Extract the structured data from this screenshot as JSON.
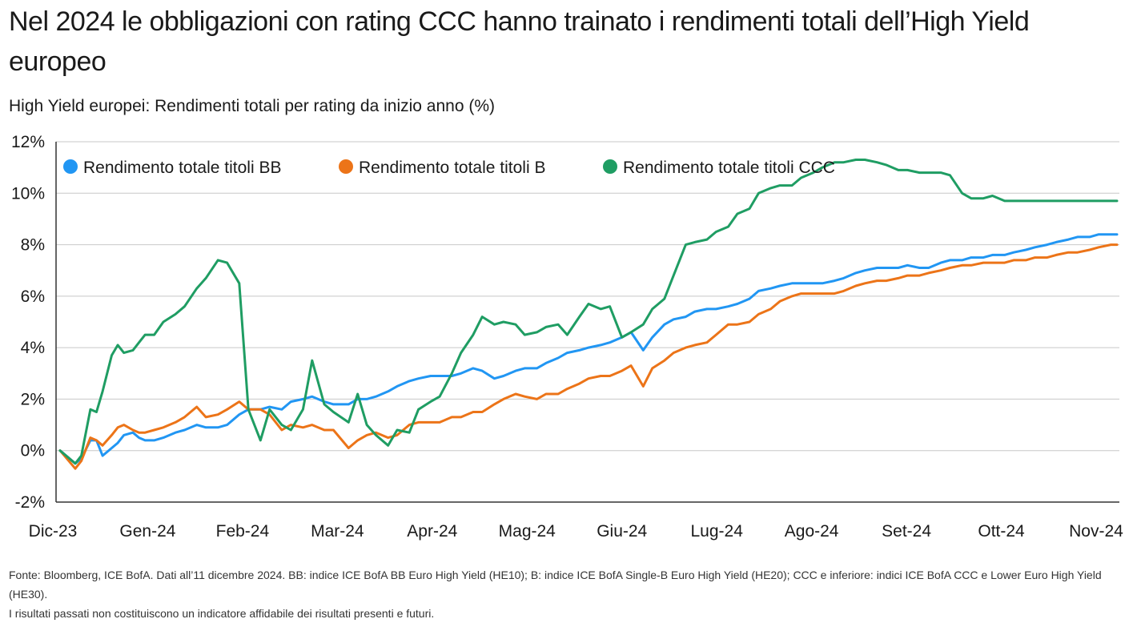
{
  "title": "Nel 2024 le obbligazioni con rating CCC hanno trainato i rendimenti totali dell’High Yield europeo",
  "subtitle": "High Yield europei: Rendimenti totali per rating da inizio anno (%)",
  "footnotes": [
    "Fonte: Bloomberg, ICE BofA. Dati all’11 dicembre 2024. BB: indice ICE BofA BB Euro High Yield (HE10); B: indice ICE BofA Single-B Euro High Yield (HE20); CCC e inferiore: indici ICE BofA CCC e Lower Euro High Yield (HE30).",
    "I risultati passati non costituiscono un indicatore affidabile dei risultati presenti e futuri."
  ],
  "colors": {
    "BB": "#2196f3",
    "B": "#ec7418",
    "CCC": "#1f9d63",
    "grid": "#c8c8c8",
    "axis": "#333333"
  },
  "chart_data": {
    "type": "line",
    "x_tick_labels": [
      "Dic-23",
      "Gen-24",
      "Feb-24",
      "Mar-24",
      "Apr-24",
      "Mag-24",
      "Giu-24",
      "Lug-24",
      "Ago-24",
      "Set-24",
      "Ott-24",
      "Nov-24"
    ],
    "y_tick_labels": [
      "12%",
      "10%",
      "8%",
      "6%",
      "4%",
      "2%",
      "0%",
      "-2%"
    ],
    "ylim": [
      -2,
      12
    ],
    "ytick_step": 2,
    "grid": "horizontal",
    "legend_position": "top-left",
    "series": [
      {
        "name": "Rendimento totale titoli BB",
        "color_key": "BB",
        "x": [
          "2023-12-29",
          "2024-01-03",
          "2024-01-05",
          "2024-01-08",
          "2024-01-10",
          "2024-01-12",
          "2024-01-15",
          "2024-01-17",
          "2024-01-19",
          "2024-01-22",
          "2024-01-24",
          "2024-01-26",
          "2024-01-29",
          "2024-02-01",
          "2024-02-05",
          "2024-02-08",
          "2024-02-12",
          "2024-02-15",
          "2024-02-19",
          "2024-02-22",
          "2024-02-26",
          "2024-02-29",
          "2024-03-04",
          "2024-03-07",
          "2024-03-11",
          "2024-03-14",
          "2024-03-18",
          "2024-03-21",
          "2024-03-25",
          "2024-03-28",
          "2024-04-02",
          "2024-04-05",
          "2024-04-08",
          "2024-04-11",
          "2024-04-15",
          "2024-04-18",
          "2024-04-22",
          "2024-04-25",
          "2024-04-29",
          "2024-05-02",
          "2024-05-06",
          "2024-05-09",
          "2024-05-13",
          "2024-05-16",
          "2024-05-20",
          "2024-05-23",
          "2024-05-27",
          "2024-05-30",
          "2024-06-03",
          "2024-06-06",
          "2024-06-10",
          "2024-06-13",
          "2024-06-17",
          "2024-06-20",
          "2024-06-24",
          "2024-06-27",
          "2024-07-01",
          "2024-07-04",
          "2024-07-08",
          "2024-07-11",
          "2024-07-15",
          "2024-07-18",
          "2024-07-22",
          "2024-07-25",
          "2024-07-29",
          "2024-08-01",
          "2024-08-05",
          "2024-08-08",
          "2024-08-12",
          "2024-08-15",
          "2024-08-19",
          "2024-08-22",
          "2024-08-26",
          "2024-08-29",
          "2024-09-02",
          "2024-09-05",
          "2024-09-09",
          "2024-09-12",
          "2024-09-16",
          "2024-09-19",
          "2024-09-23",
          "2024-09-26",
          "2024-09-30",
          "2024-10-03",
          "2024-10-07",
          "2024-10-10",
          "2024-10-14",
          "2024-10-17",
          "2024-10-21",
          "2024-10-24",
          "2024-10-28",
          "2024-10-31",
          "2024-11-04",
          "2024-11-07",
          "2024-11-11",
          "2024-11-14",
          "2024-11-18",
          "2024-11-21",
          "2024-11-25",
          "2024-11-28",
          "2024-12-02",
          "2024-12-05",
          "2024-12-09",
          "2024-12-11"
        ],
        "y": [
          0.0,
          -0.5,
          -0.3,
          0.4,
          0.4,
          -0.2,
          0.1,
          0.3,
          0.6,
          0.7,
          0.5,
          0.4,
          0.4,
          0.5,
          0.7,
          0.8,
          1.0,
          0.9,
          0.9,
          1.0,
          1.4,
          1.6,
          1.6,
          1.7,
          1.6,
          1.9,
          2.0,
          2.1,
          1.9,
          1.8,
          1.8,
          2.0,
          2.0,
          2.1,
          2.3,
          2.5,
          2.7,
          2.8,
          2.9,
          2.9,
          2.9,
          3.0,
          3.2,
          3.1,
          2.8,
          2.9,
          3.1,
          3.2,
          3.2,
          3.4,
          3.6,
          3.8,
          3.9,
          4.0,
          4.1,
          4.2,
          4.4,
          4.6,
          3.9,
          4.4,
          4.9,
          5.1,
          5.2,
          5.4,
          5.5,
          5.5,
          5.6,
          5.7,
          5.9,
          6.2,
          6.3,
          6.4,
          6.5,
          6.5,
          6.5,
          6.5,
          6.6,
          6.7,
          6.9,
          7.0,
          7.1,
          7.1,
          7.1,
          7.2,
          7.1,
          7.1,
          7.3,
          7.4,
          7.4,
          7.5,
          7.5,
          7.6,
          7.6,
          7.7,
          7.8,
          7.9,
          8.0,
          8.1,
          8.2,
          8.3,
          8.3,
          8.4,
          8.4,
          8.4
        ]
      },
      {
        "name": "Rendimento totale titoli B",
        "color_key": "B",
        "x": [
          "2023-12-29",
          "2024-01-03",
          "2024-01-05",
          "2024-01-08",
          "2024-01-10",
          "2024-01-12",
          "2024-01-15",
          "2024-01-17",
          "2024-01-19",
          "2024-01-22",
          "2024-01-24",
          "2024-01-26",
          "2024-01-29",
          "2024-02-01",
          "2024-02-05",
          "2024-02-08",
          "2024-02-12",
          "2024-02-15",
          "2024-02-19",
          "2024-02-22",
          "2024-02-26",
          "2024-02-29",
          "2024-03-04",
          "2024-03-07",
          "2024-03-11",
          "2024-03-14",
          "2024-03-18",
          "2024-03-21",
          "2024-03-25",
          "2024-03-28",
          "2024-04-02",
          "2024-04-05",
          "2024-04-08",
          "2024-04-11",
          "2024-04-15",
          "2024-04-18",
          "2024-04-22",
          "2024-04-25",
          "2024-04-29",
          "2024-05-02",
          "2024-05-06",
          "2024-05-09",
          "2024-05-13",
          "2024-05-16",
          "2024-05-20",
          "2024-05-23",
          "2024-05-27",
          "2024-05-30",
          "2024-06-03",
          "2024-06-06",
          "2024-06-10",
          "2024-06-13",
          "2024-06-17",
          "2024-06-20",
          "2024-06-24",
          "2024-06-27",
          "2024-07-01",
          "2024-07-04",
          "2024-07-08",
          "2024-07-11",
          "2024-07-15",
          "2024-07-18",
          "2024-07-22",
          "2024-07-25",
          "2024-07-29",
          "2024-08-01",
          "2024-08-05",
          "2024-08-08",
          "2024-08-12",
          "2024-08-15",
          "2024-08-19",
          "2024-08-22",
          "2024-08-26",
          "2024-08-29",
          "2024-09-02",
          "2024-09-05",
          "2024-09-09",
          "2024-09-12",
          "2024-09-16",
          "2024-09-19",
          "2024-09-23",
          "2024-09-26",
          "2024-09-30",
          "2024-10-03",
          "2024-10-07",
          "2024-10-10",
          "2024-10-14",
          "2024-10-17",
          "2024-10-21",
          "2024-10-24",
          "2024-10-28",
          "2024-10-31",
          "2024-11-04",
          "2024-11-07",
          "2024-11-11",
          "2024-11-14",
          "2024-11-18",
          "2024-11-21",
          "2024-11-25",
          "2024-11-28",
          "2024-12-02",
          "2024-12-05",
          "2024-12-09",
          "2024-12-11"
        ],
        "y": [
          0.0,
          -0.7,
          -0.4,
          0.5,
          0.4,
          0.2,
          0.6,
          0.9,
          1.0,
          0.8,
          0.7,
          0.7,
          0.8,
          0.9,
          1.1,
          1.3,
          1.7,
          1.3,
          1.4,
          1.6,
          1.9,
          1.6,
          1.6,
          1.4,
          0.8,
          1.0,
          0.9,
          1.0,
          0.8,
          0.8,
          0.1,
          0.4,
          0.6,
          0.7,
          0.5,
          0.6,
          1.0,
          1.1,
          1.1,
          1.1,
          1.3,
          1.3,
          1.5,
          1.5,
          1.8,
          2.0,
          2.2,
          2.1,
          2.0,
          2.2,
          2.2,
          2.4,
          2.6,
          2.8,
          2.9,
          2.9,
          3.1,
          3.3,
          2.5,
          3.2,
          3.5,
          3.8,
          4.0,
          4.1,
          4.2,
          4.5,
          4.9,
          4.9,
          5.0,
          5.3,
          5.5,
          5.8,
          6.0,
          6.1,
          6.1,
          6.1,
          6.1,
          6.2,
          6.4,
          6.5,
          6.6,
          6.6,
          6.7,
          6.8,
          6.8,
          6.9,
          7.0,
          7.1,
          7.2,
          7.2,
          7.3,
          7.3,
          7.3,
          7.4,
          7.4,
          7.5,
          7.5,
          7.6,
          7.7,
          7.7,
          7.8,
          7.9,
          8.0,
          8.0
        ]
      },
      {
        "name": "Rendimento totale titoli CCC",
        "color_key": "CCC",
        "x": [
          "2023-12-29",
          "2024-01-03",
          "2024-01-05",
          "2024-01-08",
          "2024-01-10",
          "2024-01-12",
          "2024-01-15",
          "2024-01-17",
          "2024-01-19",
          "2024-01-22",
          "2024-01-24",
          "2024-01-26",
          "2024-01-29",
          "2024-02-01",
          "2024-02-05",
          "2024-02-08",
          "2024-02-12",
          "2024-02-15",
          "2024-02-19",
          "2024-02-22",
          "2024-02-26",
          "2024-02-29",
          "2024-03-04",
          "2024-03-07",
          "2024-03-11",
          "2024-03-14",
          "2024-03-18",
          "2024-03-21",
          "2024-03-25",
          "2024-03-28",
          "2024-04-02",
          "2024-04-05",
          "2024-04-08",
          "2024-04-11",
          "2024-04-15",
          "2024-04-18",
          "2024-04-22",
          "2024-04-25",
          "2024-04-29",
          "2024-05-02",
          "2024-05-06",
          "2024-05-09",
          "2024-05-13",
          "2024-05-16",
          "2024-05-20",
          "2024-05-23",
          "2024-05-27",
          "2024-05-30",
          "2024-06-03",
          "2024-06-06",
          "2024-06-10",
          "2024-06-13",
          "2024-06-17",
          "2024-06-20",
          "2024-06-24",
          "2024-06-27",
          "2024-07-01",
          "2024-07-04",
          "2024-07-08",
          "2024-07-11",
          "2024-07-15",
          "2024-07-18",
          "2024-07-22",
          "2024-07-25",
          "2024-07-29",
          "2024-08-01",
          "2024-08-05",
          "2024-08-08",
          "2024-08-12",
          "2024-08-15",
          "2024-08-19",
          "2024-08-22",
          "2024-08-26",
          "2024-08-29",
          "2024-09-02",
          "2024-09-05",
          "2024-09-09",
          "2024-09-12",
          "2024-09-16",
          "2024-09-19",
          "2024-09-23",
          "2024-09-26",
          "2024-09-30",
          "2024-10-03",
          "2024-10-07",
          "2024-10-10",
          "2024-10-14",
          "2024-10-17",
          "2024-10-21",
          "2024-10-24",
          "2024-10-28",
          "2024-10-31",
          "2024-11-04",
          "2024-11-07",
          "2024-11-11",
          "2024-11-14",
          "2024-11-18",
          "2024-11-21",
          "2024-11-25",
          "2024-11-28",
          "2024-12-02",
          "2024-12-05",
          "2024-12-09",
          "2024-12-11"
        ],
        "y": [
          0.0,
          -0.5,
          -0.2,
          1.6,
          1.5,
          2.3,
          3.7,
          4.1,
          3.8,
          3.9,
          4.2,
          4.5,
          4.5,
          5.0,
          5.3,
          5.6,
          6.3,
          6.7,
          7.4,
          7.3,
          6.5,
          1.6,
          0.4,
          1.6,
          1.0,
          0.8,
          1.6,
          3.5,
          1.8,
          1.5,
          1.1,
          2.2,
          1.0,
          0.6,
          0.2,
          0.8,
          0.7,
          1.6,
          1.9,
          2.1,
          3.0,
          3.8,
          4.5,
          5.2,
          4.9,
          5.0,
          4.9,
          4.5,
          4.6,
          4.8,
          4.9,
          4.5,
          5.2,
          5.7,
          5.5,
          5.6,
          4.4,
          4.6,
          4.9,
          5.5,
          5.9,
          6.8,
          8.0,
          8.1,
          8.2,
          8.5,
          8.7,
          9.2,
          9.4,
          10.0,
          10.2,
          10.3,
          10.3,
          10.6,
          10.8,
          11.0,
          11.2,
          11.2,
          11.3,
          11.3,
          11.2,
          11.1,
          10.9,
          10.9,
          10.8,
          10.8,
          10.8,
          10.7,
          10.0,
          9.8,
          9.8,
          9.9,
          9.7,
          9.7,
          9.7,
          9.7,
          9.7,
          9.7,
          9.7,
          9.7,
          9.7,
          9.7,
          9.7,
          9.7
        ]
      }
    ]
  }
}
